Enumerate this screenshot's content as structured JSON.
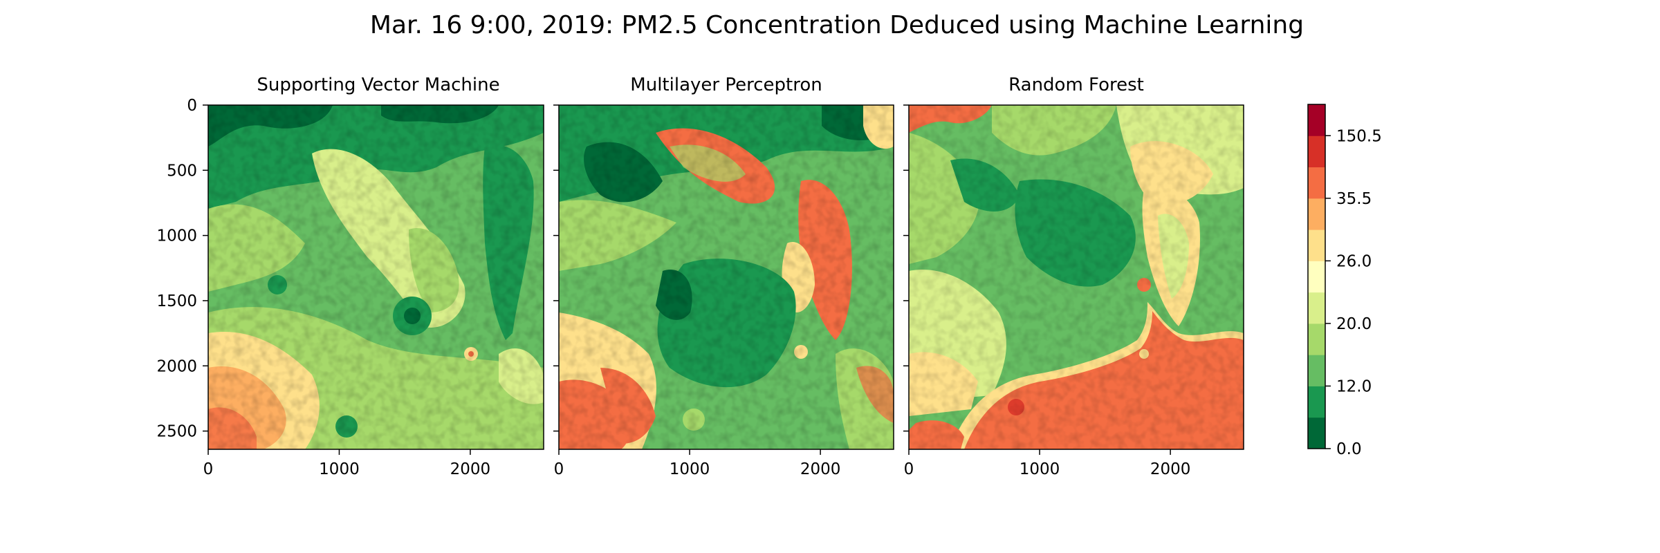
{
  "figure": {
    "title": "Mar. 16 9:00, 2019: PM2.5 Concentration Deduced using Machine Learning"
  },
  "colors": {
    "palette": [
      "#006837",
      "#1a9850",
      "#66bd63",
      "#a6d96a",
      "#d9ef8b",
      "#ffffbf",
      "#fee08b",
      "#fdae61",
      "#f46d43",
      "#d73027",
      "#a50026"
    ]
  },
  "chart_data": [
    {
      "type": "heatmap",
      "title": "Supporting Vector Machine",
      "xlim": [
        0,
        2560
      ],
      "ylim": [
        2640,
        0
      ],
      "xticks": [
        "0",
        "1000",
        "2000"
      ],
      "yticks": [
        "0",
        "500",
        "1000",
        "1500",
        "2000",
        "2500"
      ],
      "xtick_values": [
        0,
        1000,
        2000
      ],
      "ytick_values": [
        0,
        500,
        1000,
        1500,
        2000,
        2500
      ]
    },
    {
      "type": "heatmap",
      "title": "Multilayer Perceptron",
      "xlim": [
        0,
        2560
      ],
      "ylim": [
        2640,
        0
      ],
      "xticks": [
        "0",
        "1000",
        "2000"
      ],
      "xtick_values": [
        0,
        1000,
        2000
      ],
      "ytick_values": [
        0,
        500,
        1000,
        1500,
        2000,
        2500
      ]
    },
    {
      "type": "heatmap",
      "title": "Random Forest",
      "xlim": [
        0,
        2560
      ],
      "ylim": [
        2640,
        0
      ],
      "xticks": [
        "0",
        "1000",
        "2000"
      ],
      "xtick_values": [
        0,
        1000,
        2000
      ],
      "ytick_values": [
        0,
        500,
        1000,
        1500,
        2000,
        2500
      ]
    }
  ],
  "colorbar": {
    "tick_labels": [
      "0.0",
      "12.0",
      "20.0",
      "26.0",
      "35.5",
      "150.5"
    ],
    "tick_levels": [
      0,
      2,
      4,
      6,
      8,
      10
    ],
    "levels": 11
  }
}
